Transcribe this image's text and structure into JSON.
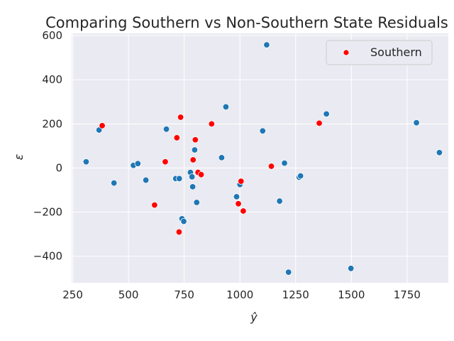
{
  "chart_data": {
    "type": "scatter",
    "title": "Comparing Southern vs Non-Southern State Residuals",
    "xlabel": "ŷ",
    "ylabel": "ε",
    "xlim": [
      245,
      1935
    ],
    "ylim": [
      -520,
      610
    ],
    "x_ticks": [
      250,
      500,
      750,
      1000,
      1250,
      1500,
      1750
    ],
    "y_ticks": [
      -400,
      -200,
      0,
      200,
      400,
      600
    ],
    "x_tick_labels": [
      "250",
      "500",
      "750",
      "1000",
      "1250",
      "1500",
      "1750"
    ],
    "y_tick_labels": [
      "−400",
      "−200",
      "0",
      "200",
      "400",
      "600"
    ],
    "grid": true,
    "legend_position": "top-right",
    "series": [
      {
        "color": "#1f77b4",
        "points": [
          [
            310,
            28
          ],
          [
            368,
            172
          ],
          [
            435,
            -68
          ],
          [
            522,
            12
          ],
          [
            542,
            20
          ],
          [
            578,
            -55
          ],
          [
            670,
            176
          ],
          [
            712,
            -48
          ],
          [
            728,
            -48
          ],
          [
            740,
            -230
          ],
          [
            748,
            -242
          ],
          [
            778,
            -20
          ],
          [
            785,
            -40
          ],
          [
            788,
            -85
          ],
          [
            797,
            82
          ],
          [
            806,
            -156
          ],
          [
            918,
            47
          ],
          [
            937,
            277
          ],
          [
            985,
            -130
          ],
          [
            1000,
            -75
          ],
          [
            1102,
            168
          ],
          [
            1120,
            558
          ],
          [
            1178,
            -150
          ],
          [
            1200,
            22
          ],
          [
            1218,
            -472
          ],
          [
            1266,
            -42
          ],
          [
            1272,
            -36
          ],
          [
            1388,
            245
          ],
          [
            1498,
            -455
          ],
          [
            1792,
            205
          ],
          [
            1895,
            70
          ]
        ]
      },
      {
        "name": "Southern",
        "color": "#ff0000",
        "points": [
          [
            382,
            192
          ],
          [
            617,
            -168
          ],
          [
            665,
            28
          ],
          [
            717,
            137
          ],
          [
            727,
            -290
          ],
          [
            734,
            230
          ],
          [
            790,
            37
          ],
          [
            800,
            128
          ],
          [
            812,
            -20
          ],
          [
            826,
            -30
          ],
          [
            873,
            200
          ],
          [
            993,
            -162
          ],
          [
            1005,
            -60
          ],
          [
            1015,
            -195
          ],
          [
            1141,
            8
          ],
          [
            1356,
            203
          ]
        ]
      }
    ]
  }
}
